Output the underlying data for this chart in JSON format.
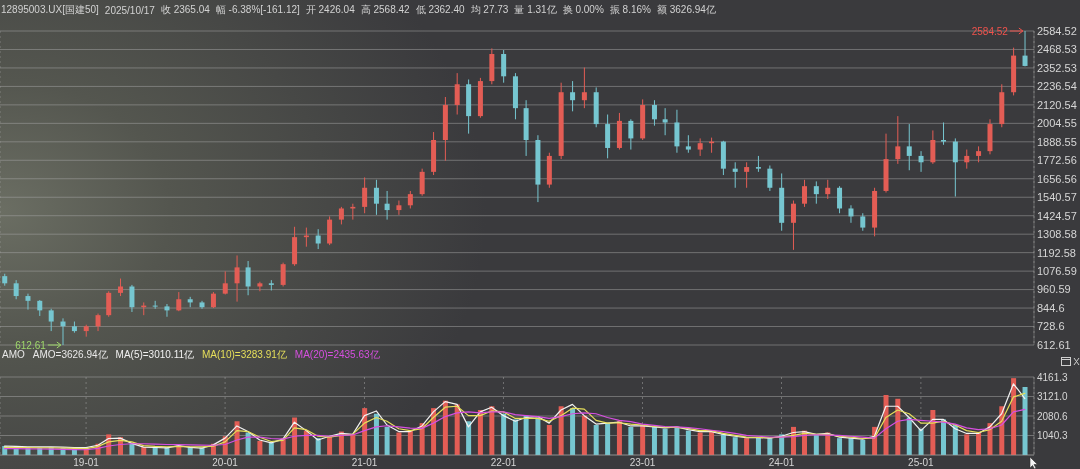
{
  "chart_data": [
    {
      "type": "candlestick",
      "title": "12895003.UX[国建50]",
      "annotations": [
        "2025/10/17",
        "收 2365.04",
        "幅 -6.38%[-161.12]",
        "开 2426.04",
        "高 2568.42",
        "低 2362.40",
        "均 27.73",
        "量 1.31亿",
        "换 0.00%",
        "振 8.16%",
        "额 3626.94亿",
        {
          "text": "2584.52",
          "x": "2025-10",
          "y": 2584.52
        },
        {
          "text": "612.61",
          "x": "2018-11",
          "y": 612.61
        }
      ],
      "x": [
        "2018-06",
        "2018-07",
        "2018-08",
        "2018-09",
        "2018-10",
        "2018-11",
        "2018-12",
        "2019-01",
        "2019-02",
        "2019-03",
        "2019-04",
        "2019-05",
        "2019-06",
        "2019-07",
        "2019-08",
        "2019-09",
        "2019-10",
        "2019-11",
        "2019-12",
        "2020-01",
        "2020-02",
        "2020-03",
        "2020-04",
        "2020-05",
        "2020-06",
        "2020-07",
        "2020-08",
        "2020-09",
        "2020-10",
        "2020-11",
        "2020-12",
        "2021-01",
        "2021-02",
        "2021-03",
        "2021-04",
        "2021-05",
        "2021-06",
        "2021-07",
        "2021-08",
        "2021-09",
        "2021-10",
        "2021-11",
        "2021-12",
        "2022-01",
        "2022-02",
        "2022-03",
        "2022-04",
        "2022-05",
        "2022-06",
        "2022-07",
        "2022-08",
        "2022-09",
        "2022-10",
        "2022-11",
        "2022-12",
        "2023-01",
        "2023-02",
        "2023-03",
        "2023-04",
        "2023-05",
        "2023-06",
        "2023-07",
        "2023-08",
        "2023-09",
        "2023-10",
        "2023-11",
        "2023-12",
        "2024-01",
        "2024-02",
        "2024-03",
        "2024-04",
        "2024-05",
        "2024-06",
        "2024-07",
        "2024-08",
        "2024-09",
        "2024-10",
        "2024-11",
        "2024-12",
        "2025-01",
        "2025-02",
        "2025-03",
        "2025-04",
        "2025-05",
        "2025-06",
        "2025-07",
        "2025-08",
        "2025-09",
        "2025-10"
      ],
      "ohlc": [
        [
          1045,
          1060,
          985,
          1000
        ],
        [
          1000,
          1020,
          900,
          920
        ],
        [
          920,
          935,
          835,
          890
        ],
        [
          890,
          895,
          795,
          830
        ],
        [
          830,
          840,
          700,
          760
        ],
        [
          760,
          780,
          612.61,
          730
        ],
        [
          730,
          760,
          690,
          700
        ],
        [
          700,
          740,
          665,
          730
        ],
        [
          730,
          810,
          700,
          800
        ],
        [
          800,
          950,
          790,
          940
        ],
        [
          940,
          1030,
          920,
          980
        ],
        [
          980,
          990,
          820,
          850
        ],
        [
          850,
          880,
          800,
          860
        ],
        [
          860,
          890,
          840,
          855
        ],
        [
          855,
          870,
          790,
          830
        ],
        [
          830,
          945,
          825,
          900
        ],
        [
          900,
          915,
          850,
          880
        ],
        [
          880,
          890,
          840,
          850
        ],
        [
          850,
          945,
          845,
          935
        ],
        [
          935,
          1075,
          930,
          1000
        ],
        [
          1000,
          1175,
          885,
          1100
        ],
        [
          1100,
          1140,
          925,
          980
        ],
        [
          980,
          1010,
          950,
          1000
        ],
        [
          1000,
          1020,
          955,
          990
        ],
        [
          990,
          1130,
          980,
          1120
        ],
        [
          1120,
          1355,
          1110,
          1290
        ],
        [
          1290,
          1350,
          1230,
          1300
        ],
        [
          1300,
          1340,
          1215,
          1250
        ],
        [
          1250,
          1420,
          1240,
          1400
        ],
        [
          1400,
          1480,
          1370,
          1470
        ],
        [
          1470,
          1500,
          1400,
          1480
        ],
        [
          1480,
          1665,
          1440,
          1600
        ],
        [
          1600,
          1650,
          1430,
          1500
        ],
        [
          1500,
          1580,
          1400,
          1460
        ],
        [
          1460,
          1520,
          1430,
          1490
        ],
        [
          1490,
          1580,
          1470,
          1560
        ],
        [
          1560,
          1720,
          1550,
          1700
        ],
        [
          1700,
          1950,
          1680,
          1900
        ],
        [
          1900,
          2170,
          1770,
          2120
        ],
        [
          2120,
          2320,
          2060,
          2250
        ],
        [
          2250,
          2280,
          1940,
          2050
        ],
        [
          2050,
          2290,
          2040,
          2270
        ],
        [
          2270,
          2475,
          2250,
          2440
        ],
        [
          2440,
          2465,
          2260,
          2300
        ],
        [
          2300,
          2320,
          2030,
          2100
        ],
        [
          2100,
          2150,
          1800,
          1900
        ],
        [
          1900,
          1930,
          1510,
          1620
        ],
        [
          1620,
          1820,
          1600,
          1800
        ],
        [
          1800,
          2260,
          1780,
          2200
        ],
        [
          2200,
          2270,
          2080,
          2150
        ],
        [
          2150,
          2355,
          2100,
          2200
        ],
        [
          2200,
          2230,
          1980,
          2000
        ],
        [
          2000,
          2060,
          1785,
          1850
        ],
        [
          1850,
          2070,
          1840,
          2020
        ],
        [
          2020,
          2030,
          1840,
          1910
        ],
        [
          1910,
          2155,
          1900,
          2120
        ],
        [
          2120,
          2150,
          1990,
          2030
        ],
        [
          2030,
          2100,
          1930,
          2010
        ],
        [
          2010,
          2090,
          1820,
          1860
        ],
        [
          1860,
          1930,
          1820,
          1840
        ],
        [
          1840,
          1910,
          1800,
          1880
        ],
        [
          1880,
          1915,
          1820,
          1890
        ],
        [
          1890,
          1895,
          1680,
          1720
        ],
        [
          1720,
          1760,
          1600,
          1700
        ],
        [
          1700,
          1760,
          1600,
          1730
        ],
        [
          1730,
          1800,
          1700,
          1720
        ],
        [
          1720,
          1740,
          1580,
          1600
        ],
        [
          1600,
          1690,
          1330,
          1380
        ],
        [
          1380,
          1520,
          1210,
          1500
        ],
        [
          1500,
          1650,
          1480,
          1610
        ],
        [
          1610,
          1640,
          1500,
          1560
        ],
        [
          1560,
          1650,
          1530,
          1600
        ],
        [
          1600,
          1610,
          1440,
          1470
        ],
        [
          1470,
          1490,
          1380,
          1420
        ],
        [
          1420,
          1440,
          1330,
          1350
        ],
        [
          1350,
          1600,
          1295,
          1580
        ],
        [
          1580,
          1940,
          1570,
          1780
        ],
        [
          1780,
          2050,
          1750,
          1860
        ],
        [
          1860,
          2000,
          1710,
          1800
        ],
        [
          1800,
          1830,
          1700,
          1760
        ],
        [
          1760,
          1960,
          1750,
          1900
        ],
        [
          1900,
          2010,
          1870,
          1890
        ],
        [
          1890,
          1910,
          1545,
          1760
        ],
        [
          1760,
          1840,
          1720,
          1800
        ],
        [
          1800,
          1860,
          1760,
          1830
        ],
        [
          1830,
          2030,
          1810,
          2000
        ],
        [
          2000,
          2250,
          1980,
          2200
        ],
        [
          2200,
          2480,
          2180,
          2430
        ],
        [
          2430,
          2584.52,
          2362.4,
          2365.04
        ]
      ],
      "colors": [
        "#76c6d0",
        "#76c6d0",
        "#76c6d0",
        "#76c6d0",
        "#76c6d0",
        "#76c6d0",
        "#76c6d0",
        "#e35d55",
        "#e35d55",
        "#e35d55",
        "#e35d55",
        "#76c6d0",
        "#e35d55",
        "#76c6d0",
        "#76c6d0",
        "#e35d55",
        "#76c6d0",
        "#76c6d0",
        "#e35d55",
        "#e35d55",
        "#e35d55",
        "#76c6d0",
        "#e35d55",
        "#76c6d0",
        "#e35d55",
        "#e35d55",
        "#e35d55",
        "#76c6d0",
        "#e35d55",
        "#e35d55",
        "#e35d55",
        "#e35d55",
        "#76c6d0",
        "#76c6d0",
        "#e35d55",
        "#e35d55",
        "#e35d55",
        "#e35d55",
        "#e35d55",
        "#e35d55",
        "#76c6d0",
        "#e35d55",
        "#e35d55",
        "#76c6d0",
        "#76c6d0",
        "#76c6d0",
        "#76c6d0",
        "#e35d55",
        "#e35d55",
        "#76c6d0",
        "#e35d55",
        "#76c6d0",
        "#76c6d0",
        "#e35d55",
        "#76c6d0",
        "#e35d55",
        "#76c6d0",
        "#76c6d0",
        "#76c6d0",
        "#76c6d0",
        "#e35d55",
        "#e35d55",
        "#76c6d0",
        "#76c6d0",
        "#e35d55",
        "#76c6d0",
        "#76c6d0",
        "#76c6d0",
        "#e35d55",
        "#e35d55",
        "#76c6d0",
        "#e35d55",
        "#76c6d0",
        "#76c6d0",
        "#76c6d0",
        "#e35d55",
        "#e35d55",
        "#e35d55",
        "#76c6d0",
        "#76c6d0",
        "#e35d55",
        "#76c6d0",
        "#76c6d0",
        "#e35d55",
        "#e35d55",
        "#e35d55",
        "#e35d55",
        "#e35d55",
        "#76c6d0"
      ],
      "xlim": [
        "2018-05-20",
        "2025-10-25"
      ],
      "xticks": [
        {
          "value": "2019-01",
          "label": null
        },
        {
          "value": "2020-01",
          "label": null
        },
        {
          "value": "2021-01",
          "label": null
        },
        {
          "value": "2022-01",
          "label": null
        },
        {
          "value": "2023-01",
          "label": null
        },
        {
          "value": "2024-01",
          "label": null
        },
        {
          "value": "2025-01",
          "label": null
        }
      ],
      "ylim": [
        612.61,
        2584.52
      ],
      "yticks": [
        612.61,
        728.6,
        844.6,
        960.59,
        1076.59,
        1192.58,
        1308.58,
        1424.57,
        1540.57,
        1656.56,
        1772.56,
        1888.55,
        2004.55,
        2120.54,
        2236.54,
        2352.53,
        2468.53,
        2584.52
      ],
      "grid": true,
      "tick_labels": "y"
    },
    {
      "type": "bar",
      "legend_title": "AMO",
      "legend": "top left",
      "marker": "none",
      "grid": true,
      "annotations": [
        "AMO=3626.94亿"
      ],
      "x": [
        "2018-06",
        "2018-07",
        "2018-08",
        "2018-09",
        "2018-10",
        "2018-11",
        "2018-12",
        "2019-01",
        "2019-02",
        "2019-03",
        "2019-04",
        "2019-05",
        "2019-06",
        "2019-07",
        "2019-08",
        "2019-09",
        "2019-10",
        "2019-11",
        "2019-12",
        "2020-01",
        "2020-02",
        "2020-03",
        "2020-04",
        "2020-05",
        "2020-06",
        "2020-07",
        "2020-08",
        "2020-09",
        "2020-10",
        "2020-11",
        "2020-12",
        "2021-01",
        "2021-02",
        "2021-03",
        "2021-04",
        "2021-05",
        "2021-06",
        "2021-07",
        "2021-08",
        "2021-09",
        "2021-10",
        "2021-11",
        "2021-12",
        "2022-01",
        "2022-02",
        "2022-03",
        "2022-04",
        "2022-05",
        "2022-06",
        "2022-07",
        "2022-08",
        "2022-09",
        "2022-10",
        "2022-11",
        "2022-12",
        "2023-01",
        "2023-02",
        "2023-03",
        "2023-04",
        "2023-05",
        "2023-06",
        "2023-07",
        "2023-08",
        "2023-09",
        "2023-10",
        "2023-11",
        "2023-12",
        "2024-01",
        "2024-02",
        "2024-03",
        "2024-04",
        "2024-05",
        "2024-06",
        "2024-07",
        "2024-08",
        "2024-09",
        "2024-10",
        "2024-11",
        "2024-12",
        "2025-01",
        "2025-02",
        "2025-03",
        "2025-04",
        "2025-05",
        "2025-06",
        "2025-07",
        "2025-08",
        "2025-09",
        "2025-10"
      ],
      "series": [
        {
          "type": "bar",
          "colors": [
            "#76c6d0",
            "#76c6d0",
            "#76c6d0",
            "#76c6d0",
            "#76c6d0",
            "#76c6d0",
            "#76c6d0",
            "#e35d55",
            "#e35d55",
            "#e35d55",
            "#e35d55",
            "#76c6d0",
            "#e35d55",
            "#76c6d0",
            "#76c6d0",
            "#e35d55",
            "#76c6d0",
            "#76c6d0",
            "#e35d55",
            "#e35d55",
            "#e35d55",
            "#76c6d0",
            "#e35d55",
            "#76c6d0",
            "#e35d55",
            "#e35d55",
            "#e35d55",
            "#76c6d0",
            "#e35d55",
            "#e35d55",
            "#e35d55",
            "#e35d55",
            "#76c6d0",
            "#76c6d0",
            "#e35d55",
            "#e35d55",
            "#e35d55",
            "#e35d55",
            "#e35d55",
            "#e35d55",
            "#76c6d0",
            "#e35d55",
            "#e35d55",
            "#76c6d0",
            "#76c6d0",
            "#76c6d0",
            "#76c6d0",
            "#e35d55",
            "#e35d55",
            "#76c6d0",
            "#e35d55",
            "#76c6d0",
            "#76c6d0",
            "#e35d55",
            "#76c6d0",
            "#e35d55",
            "#76c6d0",
            "#76c6d0",
            "#76c6d0",
            "#76c6d0",
            "#e35d55",
            "#e35d55",
            "#76c6d0",
            "#76c6d0",
            "#e35d55",
            "#76c6d0",
            "#76c6d0",
            "#76c6d0",
            "#e35d55",
            "#e35d55",
            "#76c6d0",
            "#e35d55",
            "#76c6d0",
            "#76c6d0",
            "#76c6d0",
            "#e35d55",
            "#e35d55",
            "#e35d55",
            "#76c6d0",
            "#76c6d0",
            "#e35d55",
            "#76c6d0",
            "#76c6d0",
            "#e35d55",
            "#e35d55",
            "#e35d55",
            "#e35d55",
            "#e35d55",
            "#76c6d0"
          ],
          "values": [
            480,
            420,
            400,
            380,
            420,
            380,
            350,
            370,
            600,
            1100,
            950,
            600,
            420,
            430,
            420,
            520,
            420,
            400,
            600,
            1000,
            1800,
            1200,
            750,
            650,
            900,
            2000,
            1300,
            900,
            1000,
            1250,
            1100,
            2500,
            2200,
            1500,
            1200,
            1300,
            1700,
            2500,
            2900,
            2700,
            1800,
            2400,
            2600,
            2200,
            1900,
            2100,
            2000,
            1600,
            2600,
            2500,
            2100,
            1600,
            1700,
            1800,
            1500,
            1600,
            1500,
            1400,
            1500,
            1300,
            1200,
            1300,
            1100,
            950,
            900,
            950,
            900,
            1100,
            1500,
            1300,
            1100,
            1200,
            900,
            900,
            800,
            1500,
            3200,
            3000,
            2000,
            1400,
            2400,
            1900,
            1600,
            1100,
            1200,
            1700,
            2600,
            4100,
            3626.94
          ]
        },
        {
          "name": "MA(5)=3010.11亿",
          "type": "line",
          "color": "#f2f2f2",
          "values": [
            470,
            460,
            440,
            430,
            440,
            420,
            400,
            390,
            520,
            880,
            900,
            620,
            420,
            400,
            380,
            500,
            410,
            370,
            540,
            900,
            1550,
            1250,
            800,
            650,
            850,
            1750,
            1300,
            800,
            1000,
            1150,
            1100,
            2100,
            2350,
            1600,
            1250,
            1250,
            1550,
            2300,
            2850,
            2700,
            1500,
            2300,
            2550,
            2100,
            1800,
            2000,
            2050,
            1700,
            2400,
            2700,
            2100,
            1650,
            1700,
            1750,
            1550,
            1550,
            1500,
            1450,
            1500,
            1350,
            1250,
            1250,
            1100,
            1000,
            920,
            930,
            900,
            1000,
            1200,
            1250,
            1100,
            1150,
            950,
            900,
            850,
            1000,
            2600,
            2600,
            2000,
            1300,
            1900,
            1900,
            1400,
            1150,
            1150,
            1500,
            2200,
            3800,
            3010.11
          ]
        },
        {
          "name": "MA(10)=3283.91亿",
          "type": "line",
          "color": "#e6df5a",
          "values": [
            410,
            400,
            390,
            380,
            380,
            370,
            350,
            340,
            450,
            700,
            780,
            700,
            500,
            460,
            440,
            450,
            440,
            430,
            470,
            700,
            1300,
            1250,
            950,
            720,
            780,
            1450,
            1350,
            1000,
            950,
            1050,
            1100,
            1700,
            2000,
            1800,
            1400,
            1300,
            1400,
            2000,
            2550,
            2600,
            2100,
            2100,
            2350,
            2300,
            1950,
            1950,
            1950,
            1800,
            2100,
            2500,
            2450,
            1850,
            1700,
            1720,
            1650,
            1600,
            1520,
            1480,
            1470,
            1420,
            1300,
            1300,
            1150,
            1050,
            950,
            940,
            920,
            950,
            1050,
            1150,
            1100,
            1100,
            1000,
            950,
            880,
            900,
            2000,
            2400,
            2200,
            1700,
            1700,
            1800,
            1600,
            1300,
            1200,
            1350,
            1800,
            3100,
            3283.91
          ]
        },
        {
          "name": "MA(20)=2435.63亿",
          "type": "line",
          "color": "#d64fe0",
          "values": [
            340,
            340,
            330,
            320,
            310,
            300,
            290,
            280,
            350,
            480,
            560,
            600,
            600,
            580,
            560,
            550,
            540,
            530,
            520,
            560,
            800,
            950,
            950,
            880,
            850,
            1000,
            1050,
            1050,
            1000,
            1050,
            1070,
            1300,
            1500,
            1560,
            1500,
            1430,
            1420,
            1700,
            2050,
            2250,
            2300,
            2250,
            2300,
            2300,
            2150,
            2100,
            2050,
            1950,
            2050,
            2200,
            2250,
            2200,
            2000,
            1850,
            1780,
            1650,
            1580,
            1520,
            1500,
            1460,
            1400,
            1320,
            1250,
            1150,
            1050,
            1000,
            960,
            950,
            980,
            1050,
            1080,
            1060,
            1050,
            1000,
            950,
            900,
            1400,
            1800,
            1900,
            1850,
            1800,
            1750,
            1650,
            1450,
            1350,
            1400,
            1600,
            2300,
            2435.63
          ]
        }
      ],
      "xlim": [
        "2018-05-20",
        "2025-10-25"
      ],
      "xticks": [
        {
          "value": "2019-01",
          "label": "19-01"
        },
        {
          "value": "2020-01",
          "label": "20-01"
        },
        {
          "value": "2021-01",
          "label": "21-01"
        },
        {
          "value": "2022-01",
          "label": "22-01"
        },
        {
          "value": "2023-01",
          "label": "23-01"
        },
        {
          "value": "2024-01",
          "label": "24-01"
        },
        {
          "value": "2025-01",
          "label": "25-01"
        }
      ],
      "ylim": [
        0,
        4161.3
      ],
      "yticks": [
        1040.3,
        2080.6,
        {
          "value": 3121.0,
          "label": "3121.0"
        },
        4161.3
      ]
    }
  ]
}
